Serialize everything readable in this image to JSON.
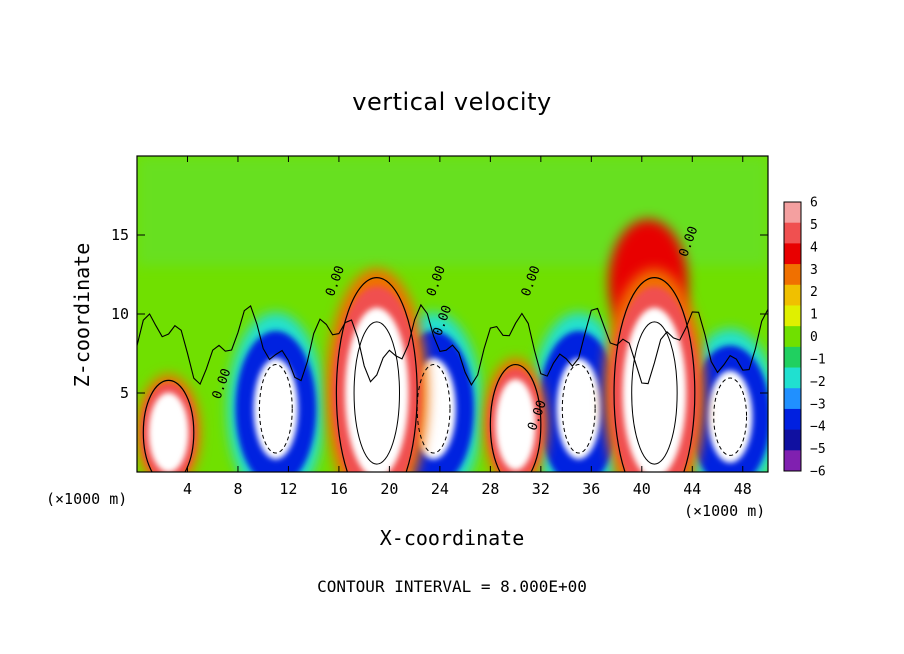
{
  "chart_data": {
    "type": "heatmap",
    "title": "vertical velocity",
    "xlabel": "X-coordinate",
    "ylabel": "Z-coordinate",
    "x_unit_label_left": "(×1000 m)",
    "x_unit_label_right": "(×1000 m)",
    "annotation": "CONTOUR INTERVAL = 8.000E+00",
    "xlim": [
      0,
      50
    ],
    "ylim": [
      0,
      20
    ],
    "x_ticks": [
      "4",
      "8",
      "12",
      "16",
      "20",
      "24",
      "28",
      "32",
      "36",
      "40",
      "44",
      "48"
    ],
    "y_ticks": [
      "5",
      "10",
      "15"
    ],
    "x_tick_values": [
      4,
      8,
      12,
      16,
      20,
      24,
      28,
      32,
      36,
      40,
      44,
      48
    ],
    "y_tick_values": [
      5,
      10,
      15
    ],
    "contour_labels": [
      "0.00",
      "0.00",
      "0.00",
      "0.00",
      "0.00",
      "0.00",
      "0.00"
    ],
    "colorbar": {
      "labels": [
        "6",
        "5",
        "4",
        "3",
        "2",
        "1",
        "0",
        "−1",
        "−2",
        "−3",
        "−4",
        "−5",
        "−6"
      ],
      "values": [
        6,
        5,
        4,
        3,
        2,
        1,
        0,
        -1,
        -2,
        -3,
        -4,
        -5,
        -6
      ],
      "colors": [
        "#f4a0a0",
        "#f05050",
        "#e80000",
        "#f07000",
        "#f0c000",
        "#e0f000",
        "#70e000",
        "#20d060",
        "#20e0d0",
        "#2090ff",
        "#0020e0",
        "#1010a0",
        "#8020b0"
      ]
    },
    "updrafts": [
      {
        "x": 2.5,
        "z": 2.5,
        "w": 4
      },
      {
        "x": 19,
        "z": 5,
        "w": 8
      },
      {
        "x": 30,
        "z": 3,
        "w": 5
      },
      {
        "x": 41,
        "z": 5,
        "w": 9
      }
    ],
    "downdrafts": [
      {
        "x": 11,
        "z": 4,
        "w": -7
      },
      {
        "x": 23.5,
        "z": 4,
        "w": -6
      },
      {
        "x": 35,
        "z": 4,
        "w": -6
      },
      {
        "x": 47,
        "z": 3.5,
        "w": -5
      }
    ]
  }
}
